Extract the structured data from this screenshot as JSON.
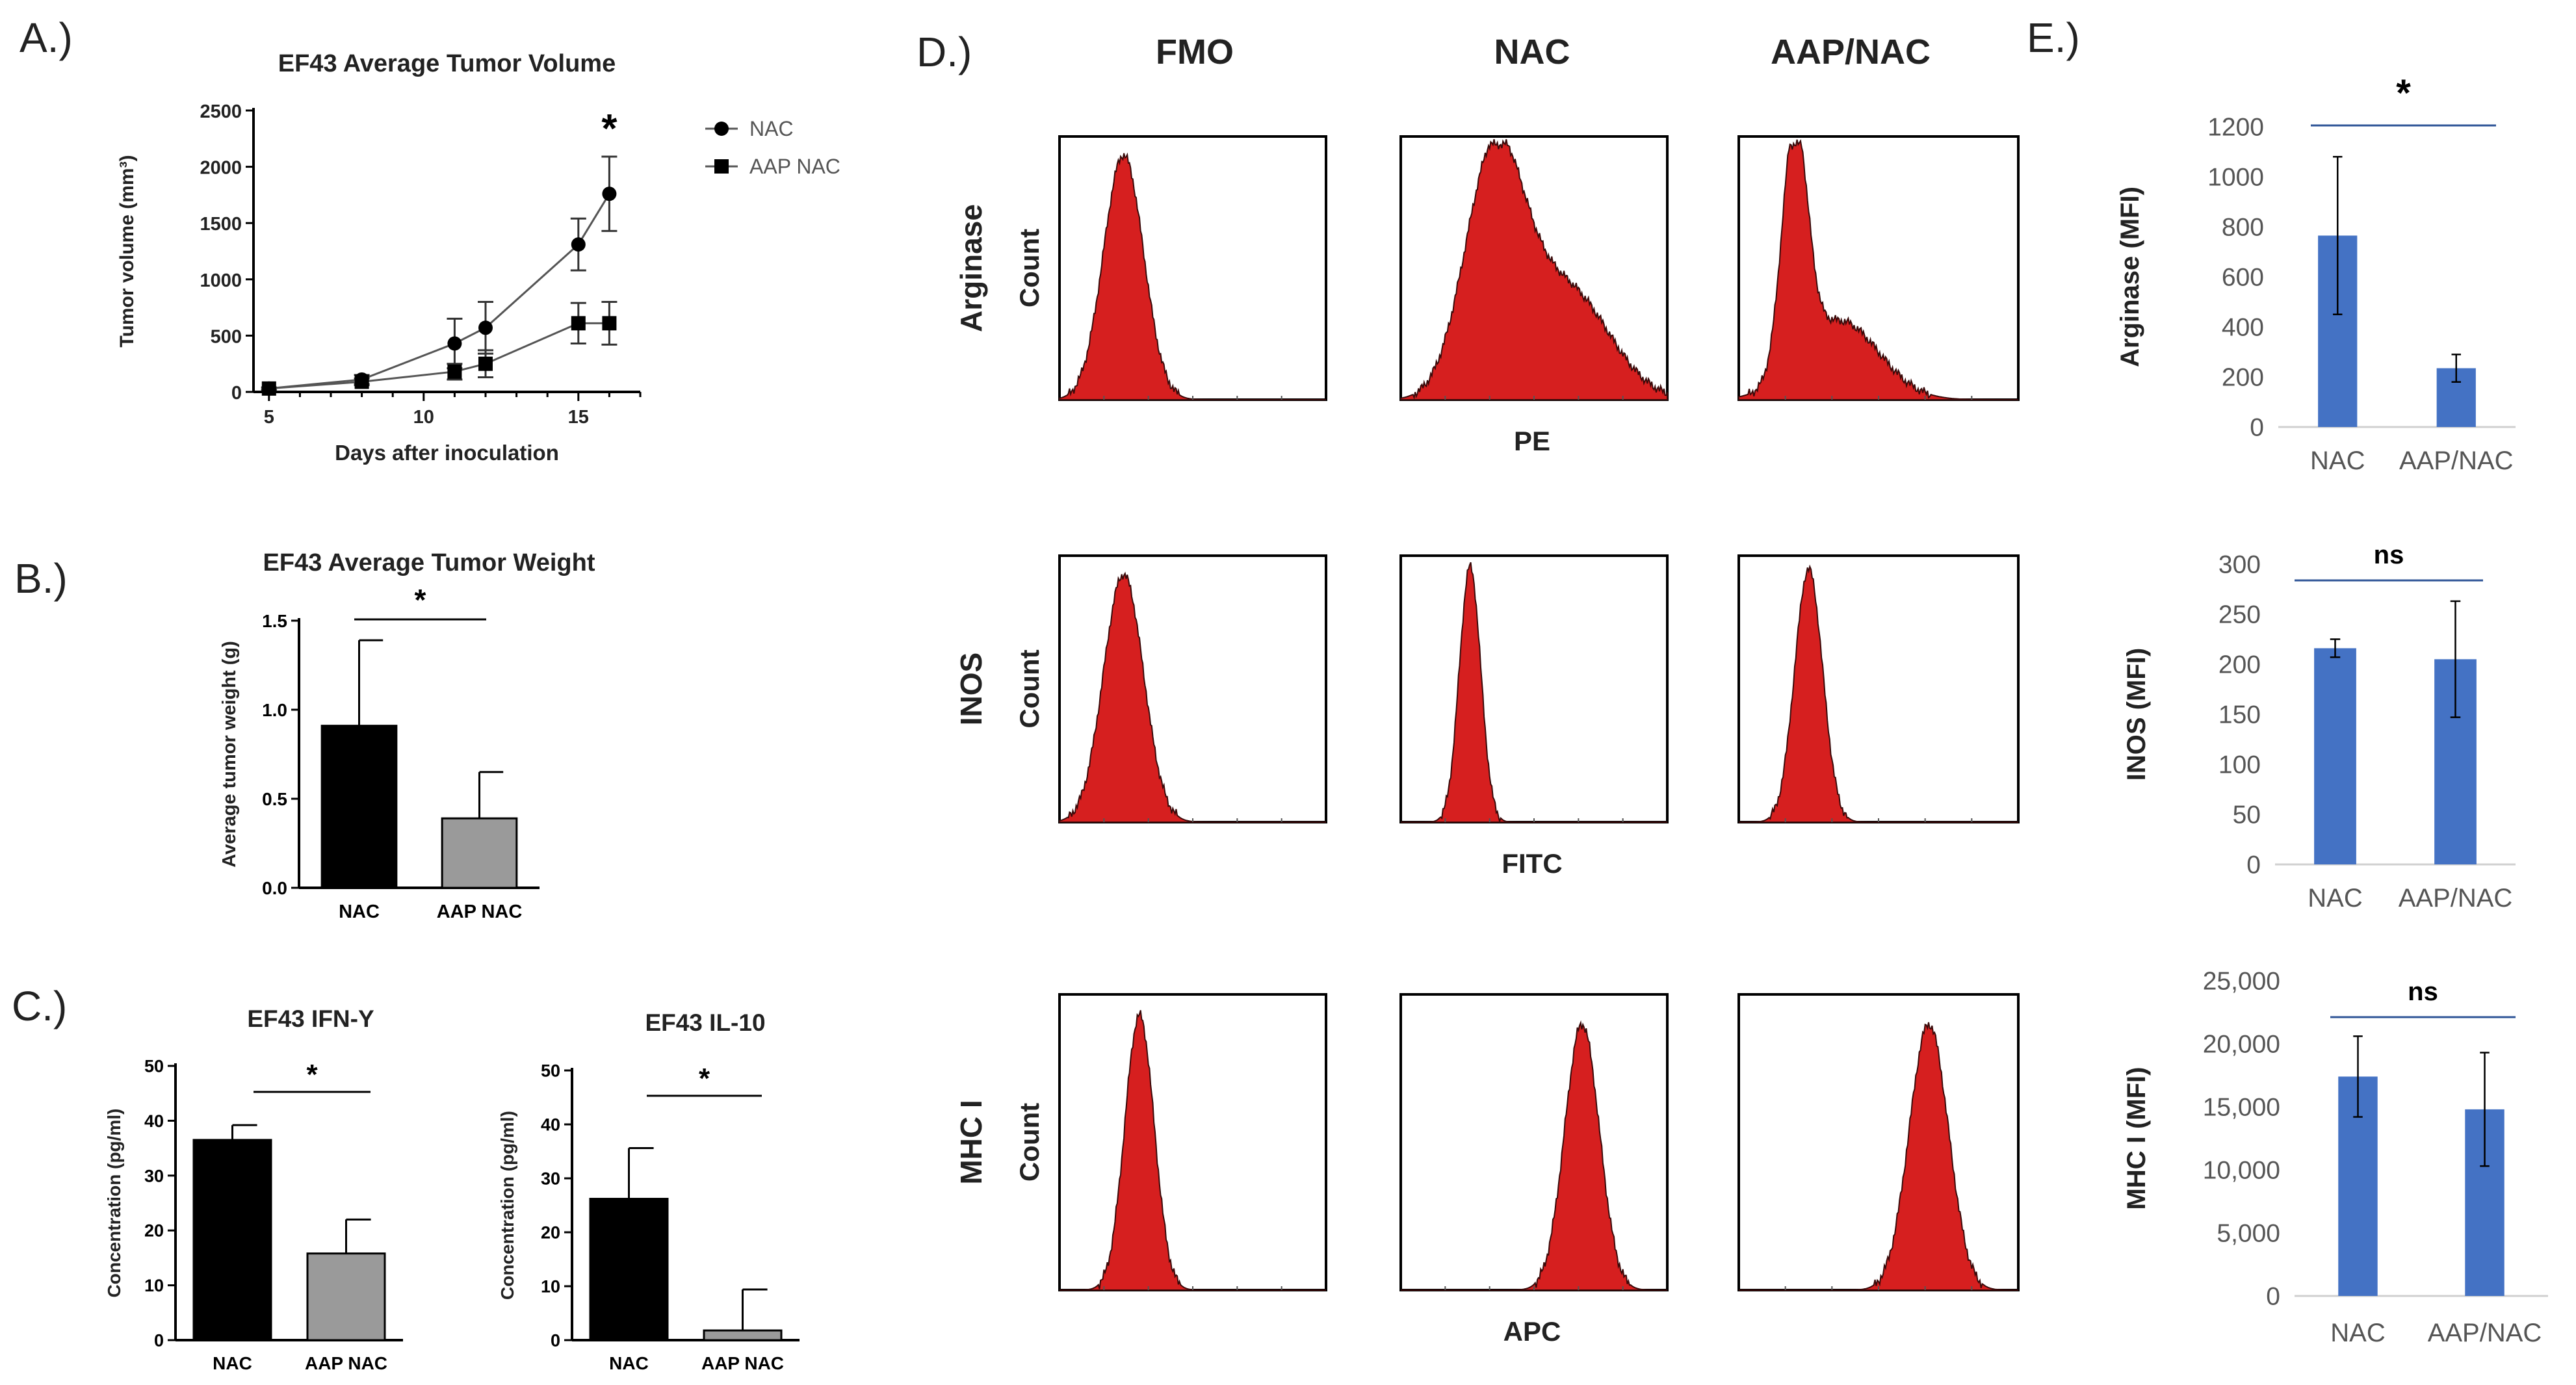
{
  "panels": {
    "A": {
      "letter": "A.)"
    },
    "B": {
      "letter": "B.)"
    },
    "C": {
      "letter": "C.)"
    },
    "D": {
      "letter": "D.)"
    },
    "E": {
      "letter": "E.)"
    }
  },
  "colors": {
    "black_bar": "#000000",
    "gray_bar": "#9a9a9a",
    "blue_bar": "#4472c4",
    "histogram_fill": "#d61f1f",
    "text": "#222222"
  },
  "chart_data": [
    {
      "id": "A",
      "type": "line",
      "title": "EF43 Average Tumor Volume",
      "xlabel": "Days after inoculation",
      "ylabel": "Tumor volume  (mm³)",
      "xlim": [
        4.5,
        17
      ],
      "ylim": [
        0,
        2500
      ],
      "xticks": [
        5,
        10,
        15
      ],
      "yticks": [
        0,
        500,
        1000,
        1500,
        2000,
        2500
      ],
      "legend_position": "right",
      "annotation": "*",
      "series": [
        {
          "name": "NAC",
          "marker": "circle",
          "x": [
            5,
            8,
            11,
            12,
            15,
            16
          ],
          "y": [
            30,
            110,
            430,
            570,
            1310,
            1760
          ],
          "err": [
            10,
            40,
            220,
            230,
            230,
            330
          ]
        },
        {
          "name": "AAP NAC",
          "marker": "square",
          "x": [
            5,
            8,
            11,
            12,
            15,
            16
          ],
          "y": [
            30,
            90,
            180,
            250,
            610,
            610
          ],
          "err": [
            10,
            30,
            70,
            120,
            180,
            190
          ]
        }
      ]
    },
    {
      "id": "B",
      "type": "bar",
      "title": "EF43 Average Tumor Weight",
      "xlabel": "",
      "ylabel": "Average tumor weight (g)",
      "categories": [
        "NAC",
        "AAP NAC"
      ],
      "values": [
        0.91,
        0.39
      ],
      "errors": [
        0.48,
        0.26
      ],
      "ylim": [
        0,
        1.5
      ],
      "yticks": [
        "0.0",
        "0.5",
        "1.0",
        "1.5"
      ],
      "significance": "*"
    },
    {
      "id": "C1",
      "type": "bar",
      "title": "EF43 IFN-Y",
      "xlabel": "",
      "ylabel": "Concentration (pg/ml)",
      "categories": [
        "NAC",
        "AAP NAC"
      ],
      "values": [
        36.5,
        15.8
      ],
      "errors": [
        2.7,
        6.2
      ],
      "ylim": [
        0,
        50
      ],
      "yticks": [
        "0",
        "10",
        "20",
        "30",
        "40",
        "50"
      ],
      "significance": "*"
    },
    {
      "id": "C2",
      "type": "bar",
      "title": "EF43 IL-10",
      "xlabel": "",
      "ylabel": "Concentration (pg/ml)",
      "categories": [
        "NAC",
        "AAP NAC"
      ],
      "values": [
        26.2,
        1.8
      ],
      "errors": [
        9.4,
        7.6
      ],
      "ylim": [
        0,
        50
      ],
      "yticks": [
        "0",
        "10",
        "20",
        "30",
        "40",
        "50"
      ],
      "significance": "*"
    },
    {
      "id": "D",
      "type": "histogram-grid",
      "column_titles": [
        "FMO",
        "NAC",
        "AAP/NAC"
      ],
      "row_markers": [
        "Arginase",
        "INOS",
        "MHC I"
      ],
      "row_axis_labels": [
        "PE",
        "FITC",
        "APC"
      ],
      "yaxis_label": "Count",
      "profiles": [
        [
          {
            "peaks": [
              {
                "mu": 0.24,
                "sigma": 0.075,
                "h": 0.93
              }
            ]
          },
          {
            "peaks": [
              {
                "mu": 0.35,
                "sigma": 0.11,
                "h": 0.9
              },
              {
                "mu": 0.62,
                "sigma": 0.16,
                "h": 0.42
              }
            ]
          },
          {
            "peaks": [
              {
                "mu": 0.2,
                "sigma": 0.045,
                "h": 0.92
              },
              {
                "mu": 0.36,
                "sigma": 0.14,
                "h": 0.3
              }
            ]
          }
        ],
        [
          {
            "peaks": [
              {
                "mu": 0.24,
                "sigma": 0.075,
                "h": 0.93
              }
            ]
          },
          {
            "peaks": [
              {
                "mu": 0.26,
                "sigma": 0.04,
                "h": 0.96
              }
            ]
          },
          {
            "peaks": [
              {
                "mu": 0.25,
                "sigma": 0.05,
                "h": 0.95
              }
            ]
          }
        ],
        [
          {
            "peaks": [
              {
                "mu": 0.3,
                "sigma": 0.055,
                "h": 0.93
              }
            ]
          },
          {
            "peaks": [
              {
                "mu": 0.68,
                "sigma": 0.065,
                "h": 0.9
              }
            ]
          },
          {
            "peaks": [
              {
                "mu": 0.68,
                "sigma": 0.07,
                "h": 0.9
              }
            ]
          }
        ]
      ]
    },
    {
      "id": "E1",
      "type": "bar",
      "xlabel": "",
      "ylabel": "Arginase (MFI)",
      "categories": [
        "NAC",
        "AAP/NAC"
      ],
      "values": [
        765,
        235
      ],
      "errors": [
        315,
        55
      ],
      "ylim": [
        0,
        1200
      ],
      "yticks": [
        "0",
        "200",
        "400",
        "600",
        "800",
        "1000",
        "1200"
      ],
      "significance": "*"
    },
    {
      "id": "E2",
      "type": "bar",
      "xlabel": "",
      "ylabel": "INOS (MFI)",
      "categories": [
        "NAC",
        "AAP/NAC"
      ],
      "values": [
        216,
        205
      ],
      "errors": [
        9,
        58
      ],
      "ylim": [
        0,
        300
      ],
      "yticks": [
        "0",
        "50",
        "100",
        "150",
        "200",
        "250",
        "300"
      ],
      "significance": "ns"
    },
    {
      "id": "E3",
      "type": "bar",
      "xlabel": "",
      "ylabel": "MHC I  (MFI)",
      "categories": [
        "NAC",
        "AAP/NAC"
      ],
      "values": [
        17400,
        14800
      ],
      "errors": [
        3200,
        4500
      ],
      "ylim": [
        0,
        25000
      ],
      "yticks": [
        "0",
        "5,000",
        "10,000",
        "15,000",
        "20,000",
        "25,000"
      ],
      "significance": "ns"
    }
  ]
}
